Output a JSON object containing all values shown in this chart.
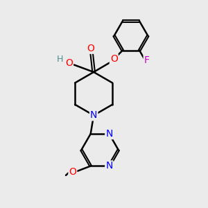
{
  "background_color": "#ebebeb",
  "bond_color": "#000000",
  "atom_colors": {
    "O": "#ff0000",
    "N": "#0000ff",
    "F": "#cc00cc",
    "H": "#4a9090",
    "C": "#000000"
  },
  "figsize": [
    3.0,
    3.0
  ],
  "dpi": 100
}
